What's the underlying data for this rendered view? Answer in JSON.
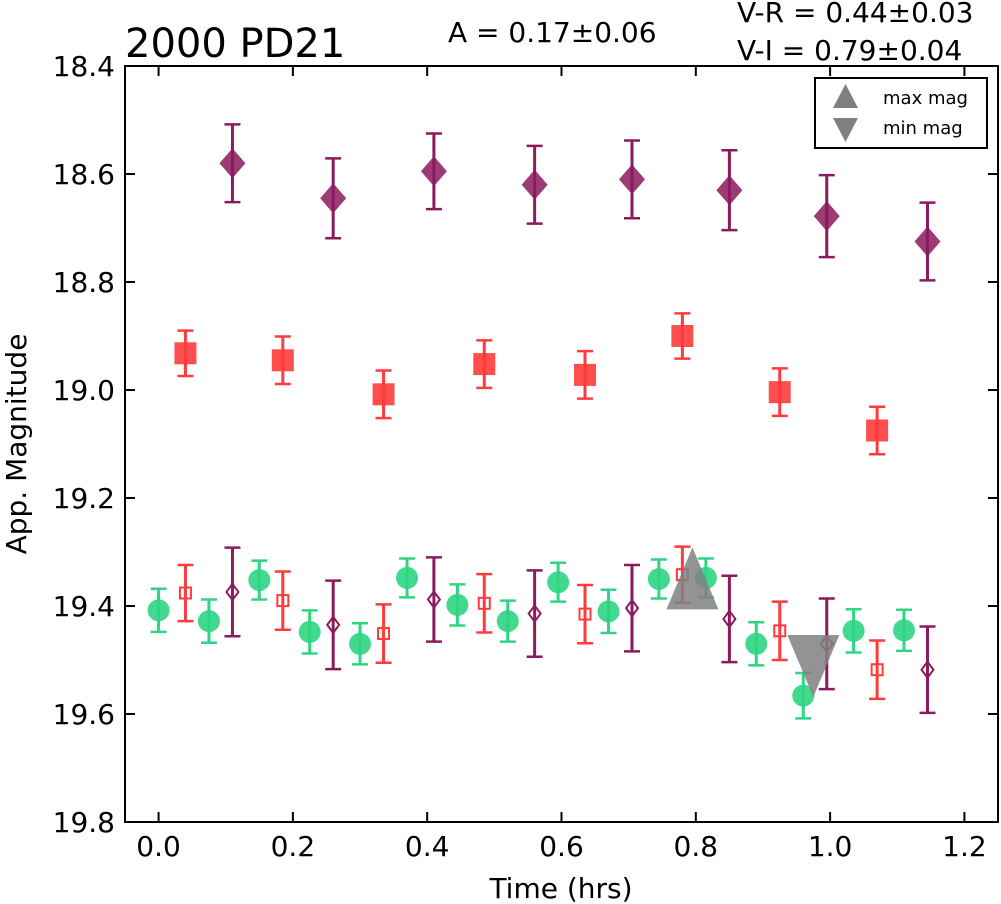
{
  "chart_data": {
    "type": "scatter",
    "title": "2000 PD21",
    "annotations": {
      "amplitude": "A  = 0.17±0.06",
      "v_r": "V-R = 0.44±0.03",
      "v_i": "V-I  = 0.79±0.04"
    },
    "xlabel": "Time (hrs)",
    "ylabel": "App. Magnitude",
    "xlim": [
      -0.05,
      1.25
    ],
    "ylim": [
      19.8,
      18.4
    ],
    "y_inverted": true,
    "xticks": [
      "0.0",
      "0.2",
      "0.4",
      "0.6",
      "0.8",
      "1.0",
      "1.2"
    ],
    "yticks": [
      "18.4",
      "18.6",
      "18.8",
      "19.0",
      "19.2",
      "19.4",
      "19.6",
      "19.8"
    ],
    "grid": false,
    "legend": {
      "placement": "top-right",
      "entries": [
        {
          "label": "max mag",
          "marker": "triangle-up",
          "color": "#808080"
        },
        {
          "label": "min mag",
          "marker": "triangle-down",
          "color": "#808080"
        }
      ]
    },
    "series": [
      {
        "marker": "diamond-filled",
        "color": "#8b1a5e",
        "points": [
          {
            "x": 0.11,
            "y": 18.58,
            "err": 0.072
          },
          {
            "x": 0.26,
            "y": 18.645,
            "err": 0.074
          },
          {
            "x": 0.41,
            "y": 18.595,
            "err": 0.07
          },
          {
            "x": 0.56,
            "y": 18.62,
            "err": 0.072
          },
          {
            "x": 0.705,
            "y": 18.61,
            "err": 0.072
          },
          {
            "x": 0.85,
            "y": 18.63,
            "err": 0.074
          },
          {
            "x": 0.995,
            "y": 18.678,
            "err": 0.076
          },
          {
            "x": 1.145,
            "y": 18.725,
            "err": 0.072
          }
        ]
      },
      {
        "marker": "square-filled",
        "color": "#ff3b3b",
        "points": [
          {
            "x": 0.04,
            "y": 18.932,
            "err": 0.042
          },
          {
            "x": 0.185,
            "y": 18.945,
            "err": 0.044
          },
          {
            "x": 0.335,
            "y": 19.008,
            "err": 0.044
          },
          {
            "x": 0.485,
            "y": 18.952,
            "err": 0.044
          },
          {
            "x": 0.635,
            "y": 18.972,
            "err": 0.044
          },
          {
            "x": 0.78,
            "y": 18.9,
            "err": 0.042
          },
          {
            "x": 0.925,
            "y": 19.004,
            "err": 0.044
          },
          {
            "x": 1.07,
            "y": 19.075,
            "err": 0.044
          }
        ]
      },
      {
        "marker": "circle-filled",
        "color": "#2ed583",
        "points": [
          {
            "x": 0.0,
            "y": 19.408,
            "err": 0.04
          },
          {
            "x": 0.075,
            "y": 19.428,
            "err": 0.04
          },
          {
            "x": 0.15,
            "y": 19.352,
            "err": 0.036
          },
          {
            "x": 0.225,
            "y": 19.448,
            "err": 0.04
          },
          {
            "x": 0.3,
            "y": 19.47,
            "err": 0.038
          },
          {
            "x": 0.37,
            "y": 19.348,
            "err": 0.036
          },
          {
            "x": 0.445,
            "y": 19.398,
            "err": 0.038
          },
          {
            "x": 0.52,
            "y": 19.428,
            "err": 0.038
          },
          {
            "x": 0.595,
            "y": 19.356,
            "err": 0.036
          },
          {
            "x": 0.67,
            "y": 19.41,
            "err": 0.04
          },
          {
            "x": 0.745,
            "y": 19.35,
            "err": 0.036
          },
          {
            "x": 0.815,
            "y": 19.348,
            "err": 0.036
          },
          {
            "x": 0.89,
            "y": 19.47,
            "err": 0.04
          },
          {
            "x": 0.96,
            "y": 19.566,
            "err": 0.042
          },
          {
            "x": 1.035,
            "y": 19.446,
            "err": 0.04
          },
          {
            "x": 1.11,
            "y": 19.445,
            "err": 0.038
          }
        ]
      },
      {
        "marker": "square-open",
        "color": "#ff3b3b",
        "points": [
          {
            "x": 0.04,
            "y": 19.376,
            "err": 0.052
          },
          {
            "x": 0.185,
            "y": 19.39,
            "err": 0.054
          },
          {
            "x": 0.335,
            "y": 19.451,
            "err": 0.054
          },
          {
            "x": 0.485,
            "y": 19.395,
            "err": 0.054
          },
          {
            "x": 0.635,
            "y": 19.415,
            "err": 0.054
          },
          {
            "x": 0.78,
            "y": 19.342,
            "err": 0.052
          },
          {
            "x": 0.925,
            "y": 19.446,
            "err": 0.054
          },
          {
            "x": 1.07,
            "y": 19.518,
            "err": 0.054
          }
        ]
      },
      {
        "marker": "diamond-open",
        "color": "#8b1a5e",
        "points": [
          {
            "x": 0.11,
            "y": 19.374,
            "err": 0.082
          },
          {
            "x": 0.26,
            "y": 19.435,
            "err": 0.082
          },
          {
            "x": 0.41,
            "y": 19.388,
            "err": 0.078
          },
          {
            "x": 0.56,
            "y": 19.414,
            "err": 0.08
          },
          {
            "x": 0.705,
            "y": 19.404,
            "err": 0.08
          },
          {
            "x": 0.85,
            "y": 19.424,
            "err": 0.08
          },
          {
            "x": 0.995,
            "y": 19.47,
            "err": 0.084
          },
          {
            "x": 1.145,
            "y": 19.518,
            "err": 0.08
          }
        ]
      }
    ],
    "max_mag": {
      "x": 0.795,
      "y": 19.36,
      "color": "#808080"
    },
    "min_mag": {
      "x": 0.975,
      "y": 19.5,
      "color": "#808080"
    }
  }
}
